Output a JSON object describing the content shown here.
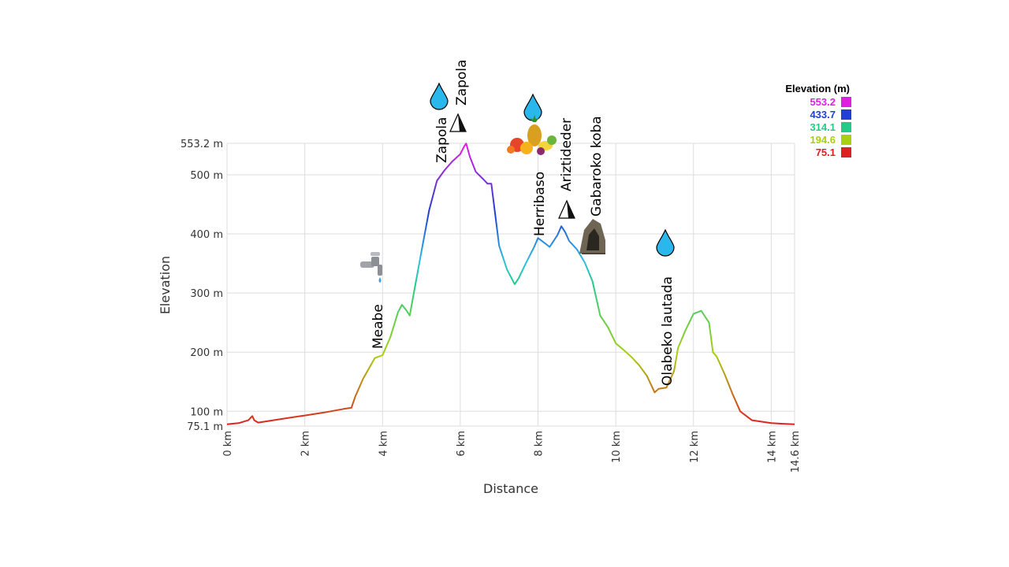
{
  "chart_data": {
    "type": "line",
    "title": "",
    "xlabel": "Distance",
    "ylabel": "Elevation",
    "xlim": [
      0,
      14.6
    ],
    "ylim": [
      75.1,
      553.2
    ],
    "x_ticks": [
      {
        "value": 0,
        "label": "0 km"
      },
      {
        "value": 2,
        "label": "2 km"
      },
      {
        "value": 4,
        "label": "4 km"
      },
      {
        "value": 6,
        "label": "6 km"
      },
      {
        "value": 8,
        "label": "8 km"
      },
      {
        "value": 10,
        "label": "10 km"
      },
      {
        "value": 12,
        "label": "12 km"
      },
      {
        "value": 14,
        "label": "14 km"
      },
      {
        "value": 14.6,
        "label": "14.6 km"
      }
    ],
    "y_ticks": [
      {
        "value": 75.1,
        "label": "75.1 m"
      },
      {
        "value": 100,
        "label": "100 m"
      },
      {
        "value": 200,
        "label": "200 m"
      },
      {
        "value": 300,
        "label": "300 m"
      },
      {
        "value": 400,
        "label": "400 m"
      },
      {
        "value": 500,
        "label": "500 m"
      },
      {
        "value": 553.2,
        "label": "553.2 m"
      }
    ],
    "grid": true,
    "legend": {
      "title": "Elevation (m)",
      "placement": "top-right",
      "entries": [
        {
          "label": "553.2",
          "color": "#e020e0"
        },
        {
          "label": "433.7",
          "color": "#1f3fd6"
        },
        {
          "label": "314.1",
          "color": "#22cc88"
        },
        {
          "label": "194.6",
          "color": "#a8d010"
        },
        {
          "label": "75.1",
          "color": "#dd2020"
        }
      ]
    },
    "series": [
      {
        "x": [
          0,
          0.3,
          0.55,
          0.65,
          0.7,
          0.8,
          1.0,
          1.5,
          2.0,
          2.5,
          3.0,
          3.2,
          3.3,
          3.5,
          3.8,
          4.0,
          4.2,
          4.4,
          4.5,
          4.6,
          4.7,
          4.8,
          5.0,
          5.2,
          5.4,
          5.6,
          5.8,
          6.0,
          6.1,
          6.15,
          6.25,
          6.4,
          6.6,
          6.7,
          6.8,
          7.0,
          7.2,
          7.4,
          7.5,
          7.7,
          7.9,
          8.0,
          8.1,
          8.3,
          8.5,
          8.6,
          8.7,
          8.8,
          9.0,
          9.2,
          9.4,
          9.6,
          9.8,
          10.0,
          10.2,
          10.4,
          10.6,
          10.8,
          11.0,
          11.1,
          11.3,
          11.5,
          11.6,
          11.8,
          12.0,
          12.2,
          12.4,
          12.5,
          12.6,
          12.8,
          13.0,
          13.2,
          13.5,
          14.0,
          14.3,
          14.6
        ],
        "y": [
          78,
          80,
          85,
          92,
          85,
          81,
          83,
          88,
          93,
          98,
          104,
          106,
          125,
          155,
          190,
          195,
          225,
          268,
          280,
          272,
          262,
          298,
          370,
          440,
          490,
          508,
          523,
          535,
          548,
          553,
          530,
          505,
          492,
          485,
          485,
          380,
          340,
          315,
          325,
          352,
          378,
          393,
          388,
          378,
          398,
          413,
          403,
          388,
          374,
          352,
          320,
          262,
          242,
          215,
          204,
          192,
          178,
          160,
          132,
          138,
          140,
          168,
          207,
          238,
          265,
          270,
          250,
          200,
          192,
          163,
          130,
          100,
          85,
          80,
          79,
          78
        ]
      }
    ]
  },
  "poi": [
    {
      "label": "Meabe",
      "icon": "water-tap-icon",
      "x": 4.0,
      "y": 193
    },
    {
      "label": "Zapola",
      "icon": "water-drop-icon",
      "x": 5.5,
      "y": 510
    },
    {
      "label": "Zapola",
      "icon": "peak-icon",
      "x": 6.0,
      "y": 553
    },
    {
      "label": "Herribaso",
      "icon": "fruit-icon",
      "x": 8.0,
      "y": 392
    },
    {
      "label": "Ariztideder",
      "icon": "peak-icon",
      "x": 8.6,
      "y": 413
    },
    {
      "label": "Gabaroko koba",
      "icon": "cave-icon",
      "x": 9.3,
      "y": 380
    },
    {
      "label": "Olabeko lautada",
      "icon": "water-drop-icon",
      "x": 11.3,
      "y": 140
    }
  ]
}
